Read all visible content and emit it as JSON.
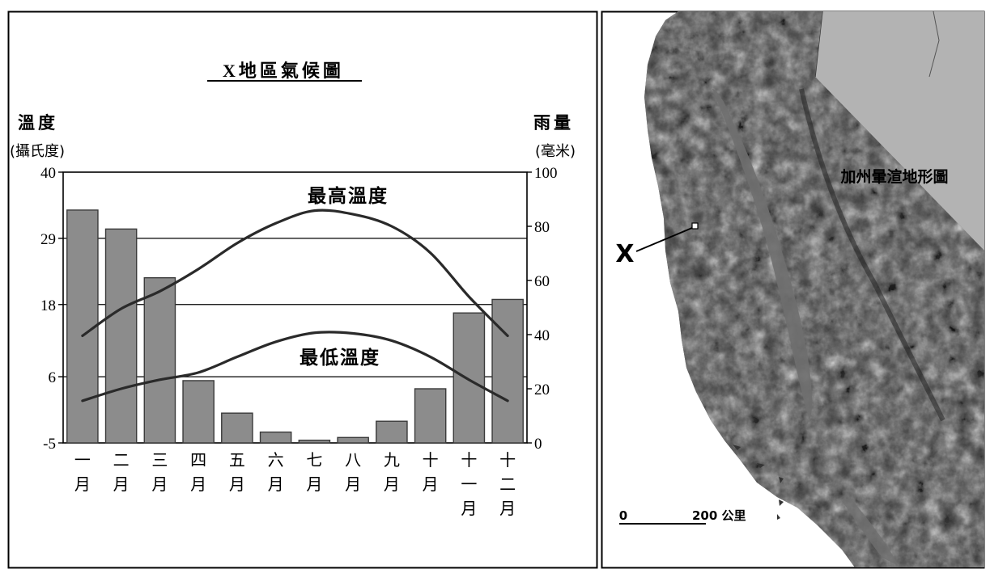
{
  "chart_data": {
    "type": "bar",
    "title": "X地區氣候圖",
    "left_axis": {
      "label": "溫度",
      "unit": "(攝氏度)",
      "ticks": [
        40,
        29,
        18,
        6,
        -5
      ],
      "range": [
        -5,
        40
      ]
    },
    "right_axis": {
      "label": "雨量",
      "unit": "(毫米)",
      "ticks": [
        100,
        80,
        60,
        40,
        20,
        0
      ],
      "range": [
        0,
        100
      ]
    },
    "categories": [
      "一月",
      "二月",
      "三月",
      "四月",
      "五月",
      "六月",
      "七月",
      "八月",
      "九月",
      "十月",
      "十一月",
      "十二月"
    ],
    "category_lines": [
      [
        "一",
        "月"
      ],
      [
        "二",
        "月"
      ],
      [
        "三",
        "月"
      ],
      [
        "四",
        "月"
      ],
      [
        "五",
        "月"
      ],
      [
        "六",
        "月"
      ],
      [
        "七",
        "月"
      ],
      [
        "八",
        "月"
      ],
      [
        "九",
        "月"
      ],
      [
        "十",
        "月"
      ],
      [
        "十",
        "一",
        "月"
      ],
      [
        "十",
        "二",
        "月"
      ]
    ],
    "series": [
      {
        "name": "雨量",
        "axis": "right",
        "type": "bar",
        "values": [
          86,
          79,
          61,
          23,
          11,
          4,
          1,
          2,
          8,
          20,
          48,
          53
        ]
      },
      {
        "name": "最高溫度",
        "axis": "left",
        "type": "line",
        "values": [
          12.8,
          17.3,
          20.2,
          23.9,
          28.2,
          31.5,
          33.6,
          33.0,
          31.0,
          26.6,
          19.3,
          12.8
        ]
      },
      {
        "name": "最低溫度",
        "axis": "left",
        "type": "line",
        "values": [
          2.0,
          4.0,
          5.5,
          6.7,
          9.3,
          11.8,
          13.3,
          13.2,
          12.0,
          9.3,
          5.5,
          2.0
        ]
      }
    ],
    "gridlines": "horizontal",
    "series_labels": [
      "最高溫度",
      "最低溫度"
    ]
  },
  "map": {
    "title": "加州暈渲地形圖",
    "marker_label": "X",
    "scale_start": "0",
    "scale_end": "200 公里"
  },
  "colors": {
    "bar_fill": "#8c8c8c",
    "bar_stroke": "#3a3a3a",
    "line": "#2a2a2a",
    "land_gray": "#b3b3b3",
    "terrain_dark": "#3c3c3c",
    "valley": "#6f6f6f"
  }
}
